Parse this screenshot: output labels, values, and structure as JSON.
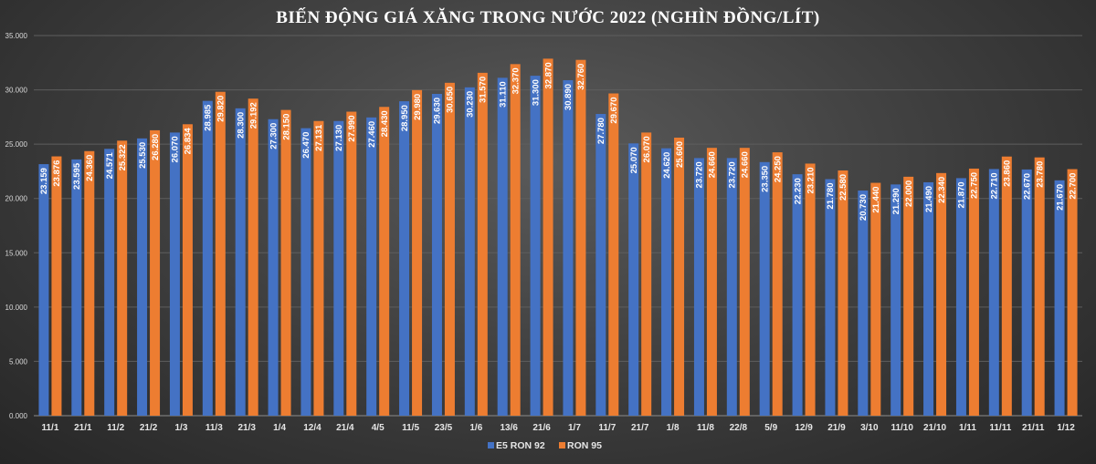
{
  "chart_data": {
    "type": "bar",
    "title": "BIẾN ĐỘNG GIÁ XĂNG TRONG NƯỚC 2022 (NGHÌN ĐỒNG/LÍT)",
    "xlabel": "",
    "ylabel": "",
    "ylim": [
      0,
      35000
    ],
    "ytick_values": [
      0,
      5000,
      10000,
      15000,
      20000,
      25000,
      30000,
      35000
    ],
    "ytick_labels": [
      "0.000",
      "5.000",
      "10.000",
      "15.000",
      "20.000",
      "25.000",
      "30.000",
      "35.000"
    ],
    "grid": true,
    "legend_position": "bottom",
    "categories": [
      "11/1",
      "21/1",
      "11/2",
      "21/2",
      "1/3",
      "11/3",
      "21/3",
      "1/4",
      "12/4",
      "21/4",
      "4/5",
      "11/5",
      "23/5",
      "1/6",
      "13/6",
      "21/6",
      "1/7",
      "11/7",
      "21/7",
      "1/8",
      "11/8",
      "22/8",
      "5/9",
      "12/9",
      "21/9",
      "3/10",
      "11/10",
      "21/10",
      "1/11",
      "11/11",
      "21/11",
      "1/12"
    ],
    "series": [
      {
        "name": "E5 RON 92",
        "color": "#4472c4",
        "values": [
          23159,
          23595,
          24571,
          25530,
          26070,
          28985,
          28300,
          27300,
          26470,
          27130,
          27460,
          28950,
          29630,
          30230,
          31110,
          31300,
          30890,
          27780,
          25070,
          24620,
          23720,
          23720,
          23350,
          22230,
          21780,
          20730,
          21290,
          21490,
          21870,
          22710,
          22670,
          21670
        ],
        "labels": [
          "23.159",
          "23.595",
          "24.571",
          "25.530",
          "26.070",
          "28.985",
          "28.300",
          "27.300",
          "26.470",
          "27.130",
          "27.460",
          "28.950",
          "29.630",
          "30.230",
          "31.110",
          "31.300",
          "30.890",
          "27.780",
          "25.070",
          "24.620",
          "23.720",
          "23.720",
          "23.350",
          "22.230",
          "21.780",
          "20.730",
          "21.290",
          "21.490",
          "21.870",
          "22.710",
          "22.670",
          "21.670"
        ]
      },
      {
        "name": "RON 95",
        "color": "#ed7d31",
        "values": [
          23876,
          24360,
          25322,
          26280,
          26834,
          29820,
          29192,
          28150,
          27131,
          27990,
          28430,
          29980,
          30650,
          31570,
          32370,
          32870,
          32760,
          29670,
          26070,
          25600,
          24660,
          24660,
          24250,
          23210,
          22580,
          21440,
          22000,
          22340,
          22750,
          23860,
          23780,
          22700
        ],
        "labels": [
          "23.876",
          "24.360",
          "25.322",
          "26.280",
          "26.834",
          "29.820",
          "29.192",
          "28.150",
          "27.131",
          "27.990",
          "28.430",
          "29.980",
          "30.650",
          "31.570",
          "32.370",
          "32.870",
          "32.760",
          "29.670",
          "26.070",
          "25.600",
          "24.660",
          "24.660",
          "24.250",
          "23.210",
          "22.580",
          "21.440",
          "22.000",
          "22.340",
          "22.750",
          "23.860",
          "23.780",
          "22.700"
        ]
      }
    ]
  }
}
